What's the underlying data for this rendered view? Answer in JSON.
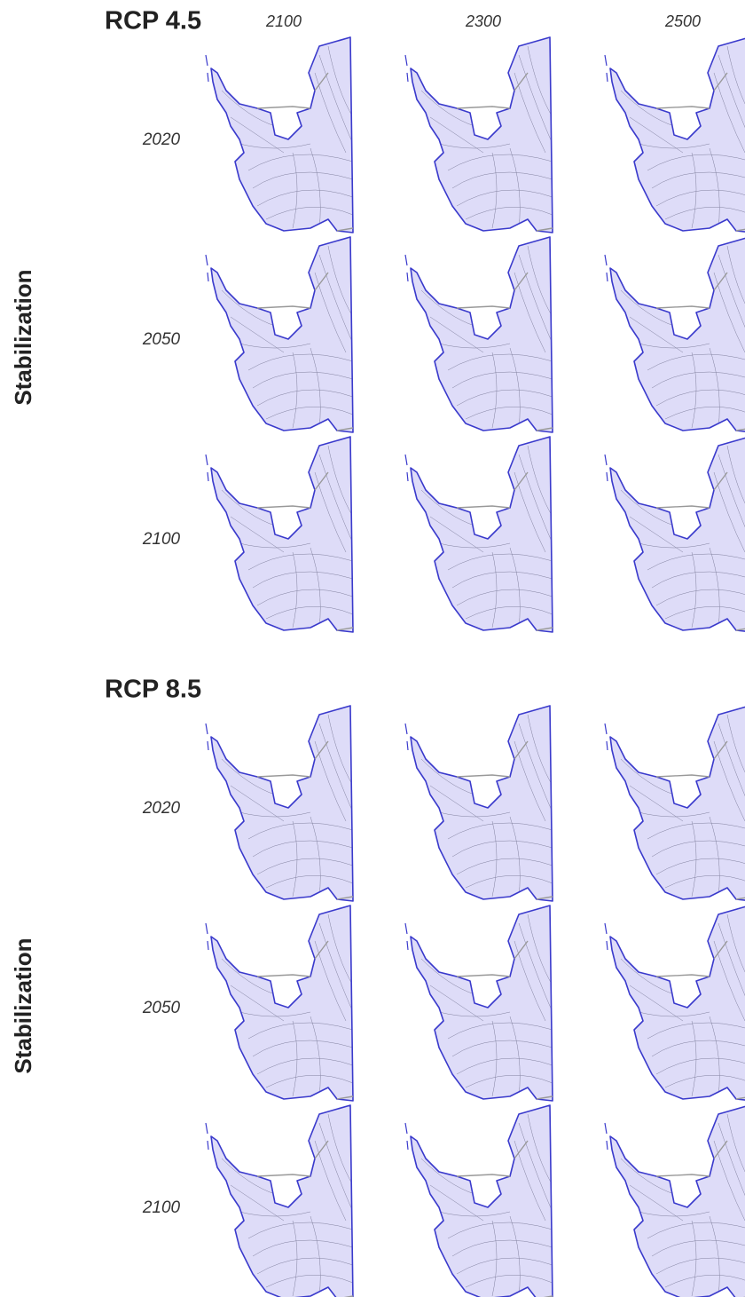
{
  "panels": [
    {
      "title": "RCP 4.5",
      "columns": [
        "2100",
        "2300",
        "2500"
      ],
      "row_group": "Stabilization",
      "rows": [
        "2020",
        "2050",
        "2100"
      ]
    },
    {
      "title": "RCP 8.5",
      "row_group": "Stabilization",
      "rows": [
        "2020",
        "2050",
        "2100"
      ]
    }
  ]
}
